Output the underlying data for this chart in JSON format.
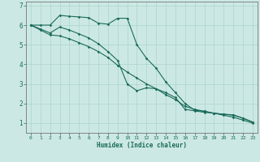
{
  "xlabel": "Humidex (Indice chaleur)",
  "bg_color": "#cce8e4",
  "line_color": "#1a6b5a",
  "grid_color": "#aad4cc",
  "xlim": [
    -0.5,
    23.5
  ],
  "ylim": [
    0.5,
    7.2
  ],
  "xticks": [
    0,
    1,
    2,
    3,
    4,
    5,
    6,
    7,
    8,
    9,
    10,
    11,
    12,
    13,
    14,
    15,
    16,
    17,
    18,
    19,
    20,
    21,
    22,
    23
  ],
  "yticks": [
    1,
    2,
    3,
    4,
    5,
    6,
    7
  ],
  "line1_x": [
    0,
    1,
    2,
    3,
    4,
    5,
    6,
    7,
    8,
    9,
    10,
    11,
    12,
    13,
    14,
    15,
    16,
    17,
    18,
    19,
    20,
    21,
    22,
    23
  ],
  "line1_y": [
    6.0,
    6.0,
    6.0,
    6.5,
    6.45,
    6.42,
    6.38,
    6.1,
    6.05,
    6.35,
    6.35,
    5.0,
    4.3,
    3.8,
    3.1,
    2.55,
    2.0,
    1.65,
    1.6,
    1.5,
    1.45,
    1.42,
    1.25,
    1.05
  ],
  "line2_x": [
    0,
    1,
    2,
    3,
    4,
    5,
    6,
    7,
    8,
    9,
    10,
    11,
    12,
    13,
    14,
    15,
    16,
    17,
    18,
    19,
    20,
    21,
    22,
    23
  ],
  "line2_y": [
    6.0,
    5.8,
    5.6,
    5.9,
    5.75,
    5.55,
    5.35,
    5.05,
    4.65,
    4.2,
    3.0,
    2.65,
    2.8,
    2.75,
    2.55,
    2.3,
    1.7,
    1.62,
    1.55,
    1.5,
    1.45,
    1.4,
    1.25,
    1.05
  ],
  "line3_x": [
    0,
    1,
    2,
    3,
    4,
    5,
    6,
    7,
    8,
    9,
    10,
    11,
    12,
    13,
    14,
    15,
    16,
    17,
    18,
    19,
    20,
    21,
    22,
    23
  ],
  "line3_y": [
    6.0,
    5.75,
    5.5,
    5.45,
    5.3,
    5.1,
    4.9,
    4.65,
    4.35,
    3.95,
    3.6,
    3.3,
    3.0,
    2.75,
    2.45,
    2.2,
    1.85,
    1.7,
    1.6,
    1.5,
    1.4,
    1.3,
    1.15,
    1.0
  ]
}
